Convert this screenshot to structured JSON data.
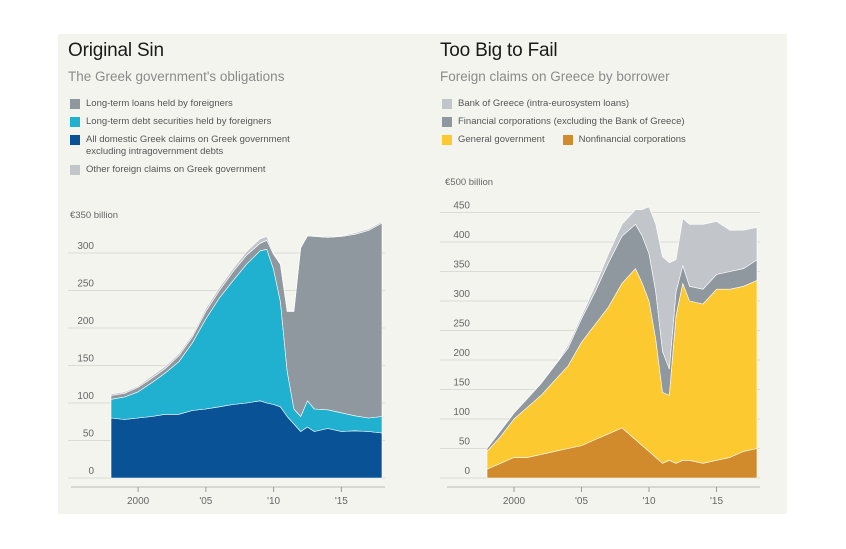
{
  "chart_data": [
    {
      "type": "area",
      "title": "Original Sin",
      "subtitle": "The Greek government's obligations",
      "unit_label": "€350 billion",
      "ylim": [
        0,
        350
      ],
      "yticks": [
        0,
        50,
        100,
        150,
        200,
        250,
        300
      ],
      "xticks": [
        {
          "x": 2000,
          "label": "2000"
        },
        {
          "x": 2005,
          "label": "'05"
        },
        {
          "x": 2010,
          "label": "'10"
        },
        {
          "x": 2015,
          "label": "'15"
        }
      ],
      "xlim": [
        1998,
        2018
      ],
      "stacked": true,
      "x": [
        1998,
        1999,
        2000,
        2001,
        2002,
        2003,
        2004,
        2005,
        2006,
        2007,
        2008,
        2009,
        2009.5,
        2010,
        2010.5,
        2011,
        2011.5,
        2012,
        2012.5,
        2013,
        2014,
        2015,
        2016,
        2017,
        2018
      ],
      "series": [
        {
          "name": "All domestic Greek claims on Greek government excluding intragovernment debts",
          "color": "#0a5296",
          "values": [
            80,
            78,
            80,
            82,
            85,
            85,
            90,
            92,
            95,
            98,
            100,
            103,
            100,
            98,
            95,
            82,
            72,
            62,
            68,
            62,
            66,
            62,
            63,
            62,
            60
          ]
        },
        {
          "name": "Long-term debt securities held by foreigners",
          "color": "#1fb1cf",
          "values": [
            25,
            30,
            35,
            45,
            55,
            70,
            90,
            120,
            145,
            165,
            185,
            200,
            205,
            180,
            140,
            60,
            20,
            20,
            35,
            30,
            25,
            25,
            20,
            18,
            22
          ]
        },
        {
          "name": "Long-term loans held by foreigners",
          "color": "#8f979f",
          "values": [
            5,
            5,
            6,
            6,
            6,
            8,
            8,
            10,
            10,
            12,
            12,
            10,
            12,
            20,
            50,
            80,
            130,
            225,
            220,
            230,
            230,
            235,
            242,
            250,
            258
          ]
        },
        {
          "name": "Other foreign claims on Greek government",
          "color": "#c2c6ca",
          "values": [
            2,
            2,
            2,
            3,
            3,
            3,
            3,
            4,
            4,
            4,
            5,
            6,
            5,
            2,
            1,
            1,
            1,
            1,
            1,
            1,
            1,
            1,
            2,
            2,
            2
          ]
        }
      ],
      "legend_order": [
        2,
        1,
        0,
        3
      ]
    },
    {
      "type": "area",
      "title": "Too Big to Fail",
      "subtitle": "Foreign claims on Greece by borrower",
      "unit_label": "€500 billion",
      "ylim": [
        0,
        500
      ],
      "yticks": [
        0,
        50,
        100,
        150,
        200,
        250,
        300,
        350,
        400,
        450
      ],
      "xticks": [
        {
          "x": 2000,
          "label": "2000"
        },
        {
          "x": 2005,
          "label": "'05"
        },
        {
          "x": 2010,
          "label": "'10"
        },
        {
          "x": 2015,
          "label": "'15"
        }
      ],
      "xlim": [
        1998,
        2018
      ],
      "stacked": true,
      "x": [
        1998,
        1999,
        2000,
        2001,
        2002,
        2003,
        2004,
        2005,
        2006,
        2007,
        2008,
        2009,
        2009.5,
        2010,
        2010.5,
        2011,
        2011.5,
        2012,
        2012.5,
        2013,
        2014,
        2015,
        2016,
        2017,
        2018
      ],
      "series": [
        {
          "name": "Nonfinancial corporations",
          "color": "#d18b2d",
          "values": [
            15,
            25,
            35,
            35,
            40,
            45,
            50,
            55,
            65,
            75,
            85,
            65,
            55,
            45,
            35,
            25,
            30,
            25,
            30,
            30,
            25,
            30,
            35,
            45,
            50
          ]
        },
        {
          "name": "General government",
          "color": "#fcc930",
          "values": [
            30,
            45,
            65,
            85,
            100,
            120,
            140,
            175,
            195,
            215,
            245,
            290,
            275,
            255,
            200,
            120,
            110,
            250,
            300,
            270,
            270,
            290,
            285,
            280,
            285
          ]
        },
        {
          "name": "Financial corporations (excluding the Bank of Greece)",
          "color": "#8f979f",
          "values": [
            5,
            10,
            10,
            15,
            20,
            25,
            30,
            40,
            55,
            75,
            80,
            75,
            80,
            80,
            80,
            70,
            45,
            40,
            30,
            25,
            25,
            25,
            30,
            30,
            35
          ]
        },
        {
          "name": "Bank of Greece (intra-eurosystem loans)",
          "color": "#c2c6ca",
          "values": [
            0,
            0,
            0,
            0,
            0,
            0,
            5,
            5,
            10,
            15,
            20,
            25,
            45,
            80,
            115,
            160,
            180,
            55,
            80,
            105,
            110,
            90,
            70,
            65,
            55
          ]
        }
      ],
      "legend_order": [
        3,
        2,
        1,
        0
      ],
      "legend_rows": [
        [
          3
        ],
        [
          2
        ],
        [
          1,
          0
        ]
      ]
    }
  ]
}
